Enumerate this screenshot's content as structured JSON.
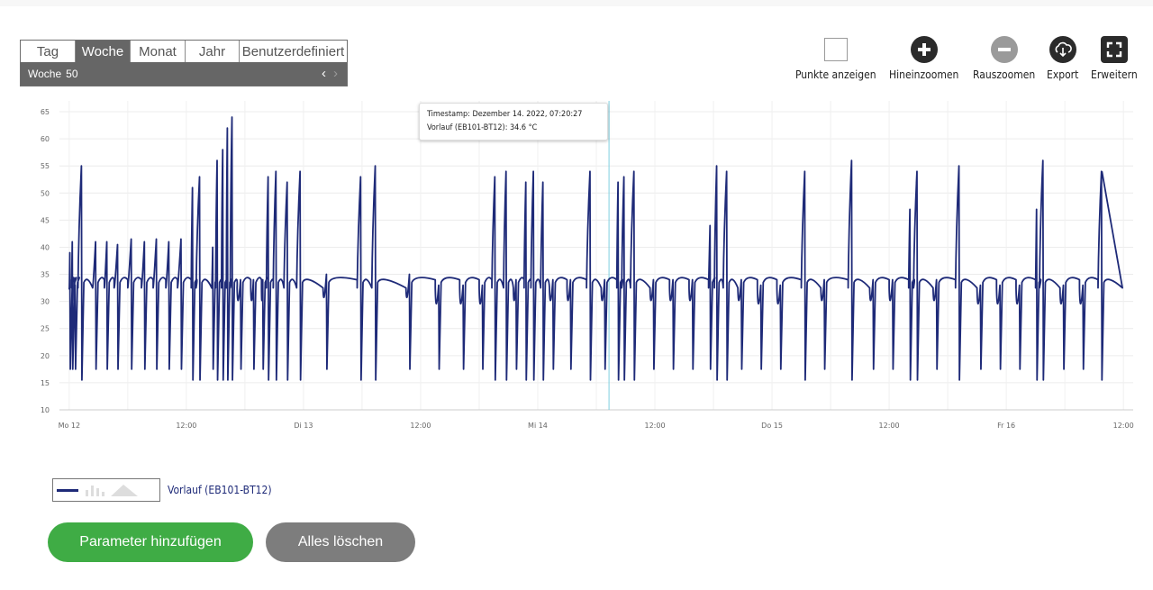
{
  "period_selector": {
    "tabs": [
      {
        "label": "Tag",
        "active": false
      },
      {
        "label": "Woche",
        "active": true
      },
      {
        "label": "Monat",
        "active": false
      },
      {
        "label": "Jahr",
        "active": false
      },
      {
        "label": "Benutzerdefiniert",
        "active": false
      }
    ],
    "current_label": "Woche",
    "current_value": "50",
    "prev_glyph": "‹",
    "next_glyph": "›"
  },
  "toolbar": {
    "show_points_label": "Punkte anzeigen",
    "zoom_in_label": "Hineinzoomen",
    "zoom_out_label": "Rauszoomen",
    "export_label": "Export",
    "expand_label": "Erweitern"
  },
  "tooltip": {
    "line1": "Timestamp: Dezember 14. 2022, 07:20:27",
    "line2": "Vorlauf (EB101-BT12): 34.6 °C"
  },
  "legend": {
    "series_label": "Vorlauf (EB101-BT12)"
  },
  "buttons": {
    "add_parameter": "Parameter hinzufügen",
    "clear_all": "Alles löschen"
  },
  "colors": {
    "series": "#1e2a78",
    "crosshair": "#7ecfe0",
    "add_button": "#3fac45",
    "clear_button": "#7d7d7d"
  },
  "chart_data": {
    "type": "line",
    "x_tick_labels": [
      "Mo 12",
      "12:00",
      "Di 13",
      "12:00",
      "Mi 14",
      "12:00",
      "Do 15",
      "12:00",
      "Fr 16",
      "12:00"
    ],
    "y_ticks": [
      10,
      15,
      20,
      25,
      30,
      35,
      40,
      45,
      50,
      55,
      60,
      65
    ],
    "ylim": [
      10,
      67
    ],
    "x_unit": "hours since Mo 12 00:00",
    "xlim": [
      -1,
      109
    ],
    "crosshair_x": 55.3,
    "series": [
      {
        "name": "Vorlauf (EB101-BT12)",
        "cycles": [
          {
            "t": 0.0,
            "peak": 39
          },
          {
            "t": 0.25,
            "peak": 41
          },
          {
            "t": 0.5,
            "peak": 33
          },
          {
            "t": 0.9,
            "peak": 55
          },
          {
            "t": 2.4,
            "peak": 41
          },
          {
            "t": 3.6,
            "peak": 41
          },
          {
            "t": 4.6,
            "peak": 40.5
          },
          {
            "t": 6.0,
            "peak": 41.5
          },
          {
            "t": 7.4,
            "peak": 41
          },
          {
            "t": 8.6,
            "peak": 41.5
          },
          {
            "t": 9.9,
            "peak": 41
          },
          {
            "t": 11.1,
            "peak": 41.5
          },
          {
            "t": 12.5,
            "peak": 51
          },
          {
            "t": 13.0,
            "peak": 53
          },
          {
            "t": 14.6,
            "peak": 40
          },
          {
            "t": 15.0,
            "peak": 56
          },
          {
            "t": 15.6,
            "peak": 58
          },
          {
            "t": 16.1,
            "peak": 62
          },
          {
            "t": 16.5,
            "peak": 64
          },
          {
            "t": 17.2,
            "peak": 34
          },
          {
            "t": 18.6,
            "peak": 34
          },
          {
            "t": 19.7,
            "peak": 34
          },
          {
            "t": 20.2,
            "peak": 53
          },
          {
            "t": 20.9,
            "peak": 54
          },
          {
            "t": 22.0,
            "peak": 52
          },
          {
            "t": 23.3,
            "peak": 54
          },
          {
            "t": 26.0,
            "peak": 35
          },
          {
            "t": 29.5,
            "peak": 53
          },
          {
            "t": 31.0,
            "peak": 55
          },
          {
            "t": 34.5,
            "peak": 35
          },
          {
            "t": 37.5,
            "peak": 33
          },
          {
            "t": 40.0,
            "peak": 33
          },
          {
            "t": 42.0,
            "peak": 33
          },
          {
            "t": 43.3,
            "peak": 53
          },
          {
            "t": 44.5,
            "peak": 54
          },
          {
            "t": 45.5,
            "peak": 34
          },
          {
            "t": 46.6,
            "peak": 52
          },
          {
            "t": 47.3,
            "peak": 54
          },
          {
            "t": 48.3,
            "peak": 52
          },
          {
            "t": 49.2,
            "peak": 34
          },
          {
            "t": 51.0,
            "peak": 34
          },
          {
            "t": 53.0,
            "peak": 54
          },
          {
            "t": 54.5,
            "peak": 34
          },
          {
            "t": 56.1,
            "peak": 52
          },
          {
            "t": 56.6,
            "peak": 53
          },
          {
            "t": 57.5,
            "peak": 54
          },
          {
            "t": 59.5,
            "peak": 34
          },
          {
            "t": 61.5,
            "peak": 34
          },
          {
            "t": 63.5,
            "peak": 34
          },
          {
            "t": 65.5,
            "peak": 44
          },
          {
            "t": 66.1,
            "peak": 55
          },
          {
            "t": 67.0,
            "peak": 54
          },
          {
            "t": 68.5,
            "peak": 34
          },
          {
            "t": 70.5,
            "peak": 33
          },
          {
            "t": 72.5,
            "peak": 33
          },
          {
            "t": 75.0,
            "peak": 54
          },
          {
            "t": 77.0,
            "peak": 34
          },
          {
            "t": 79.8,
            "peak": 56
          },
          {
            "t": 82.0,
            "peak": 34
          },
          {
            "t": 84.0,
            "peak": 34
          },
          {
            "t": 86.0,
            "peak": 47
          },
          {
            "t": 86.5,
            "peak": 54
          },
          {
            "t": 88.5,
            "peak": 34
          },
          {
            "t": 90.8,
            "peak": 55
          },
          {
            "t": 93.0,
            "peak": 33
          },
          {
            "t": 95.0,
            "peak": 33
          },
          {
            "t": 97.0,
            "peak": 33
          },
          {
            "t": 99.0,
            "peak": 47
          },
          {
            "t": 99.4,
            "peak": 56
          },
          {
            "t": 101.5,
            "peak": 33
          },
          {
            "t": 103.5,
            "peak": 33
          },
          {
            "t": 105.4,
            "peak": 54
          }
        ],
        "baseline": 32.5,
        "min": 15.5
      }
    ]
  }
}
